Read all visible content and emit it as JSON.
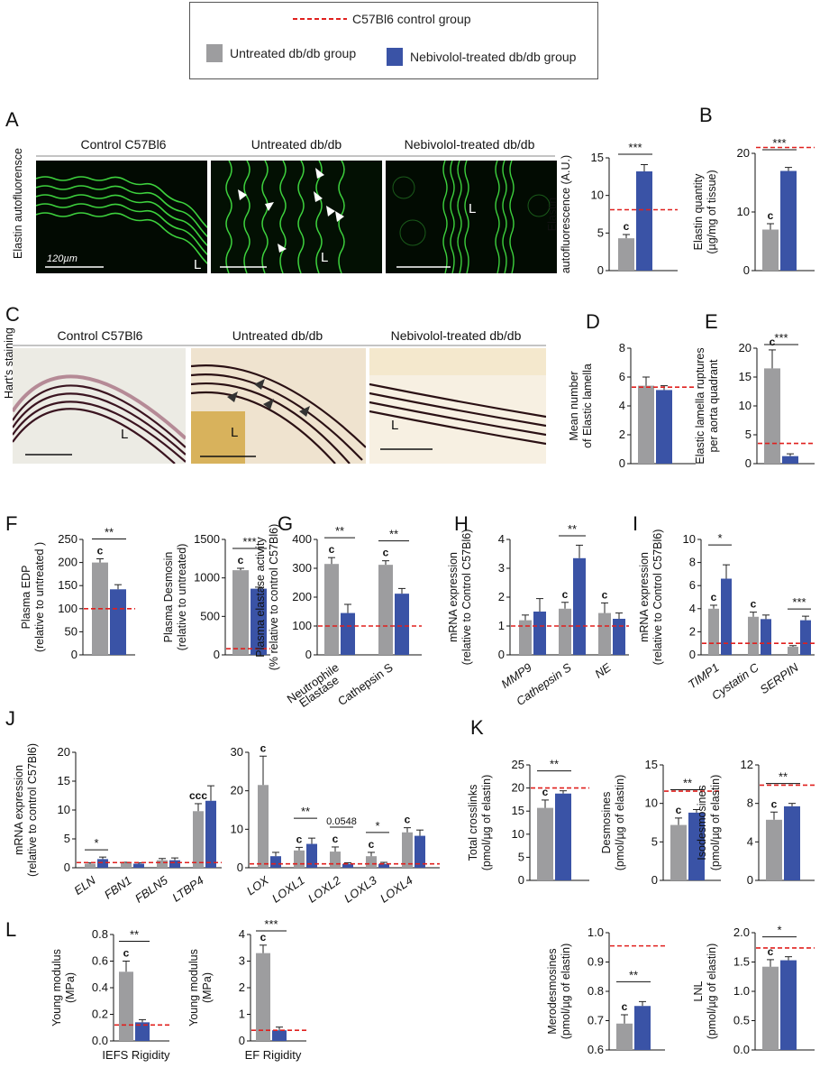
{
  "legend": {
    "control_label": "C57Bl6 control group",
    "untreated_label": "Untreated db/db group",
    "treated_label": "Nebivolol-treated db/db group"
  },
  "colors": {
    "untreated": "#9d9d9f",
    "treated": "#3a53a6",
    "control_line": "#e0201e"
  },
  "panels": {
    "A": {
      "letter": "A",
      "row_label": "Elastin autofluorensce",
      "titles": [
        "Control C57Bl6",
        "Untreated db/db",
        "Nebivolol-treated db/db"
      ],
      "lumen": "L",
      "scale": "120µm"
    },
    "B": {
      "letter": "B"
    },
    "C": {
      "letter": "C",
      "row_label": "Hart's staining",
      "titles": [
        "Control C57Bl6",
        "Untreated db/db",
        "Nebivolol-treated db/db"
      ],
      "lumen": "L"
    },
    "D": {
      "letter": "D"
    },
    "E": {
      "letter": "E"
    },
    "F": {
      "letter": "F"
    },
    "G": {
      "letter": "G"
    },
    "H": {
      "letter": "H"
    },
    "I": {
      "letter": "I"
    },
    "J": {
      "letter": "J"
    },
    "K": {
      "letter": "K"
    },
    "L": {
      "letter": "L"
    }
  },
  "chart_data": [
    {
      "id": "A",
      "type": "bar",
      "ylabel": [
        "Elastin",
        "autofluorescence (A.U.)"
      ],
      "ylim": [
        0,
        15
      ],
      "ticks": [
        0,
        5,
        10,
        15
      ],
      "categories": [
        ""
      ],
      "series": [
        {
          "values": [
            4.3
          ],
          "err": [
            0.5
          ]
        },
        {
          "values": [
            13.2
          ],
          "err": [
            0.9
          ]
        }
      ],
      "control": 8.1,
      "letters": [
        [
          "c"
        ]
      ],
      "sig": [
        {
          "text": "***",
          "cat": 0
        }
      ]
    },
    {
      "id": "B",
      "type": "bar",
      "ylabel": [
        "Elastin quantity",
        "(µg/mg of tissue)"
      ],
      "ylim": [
        0,
        20
      ],
      "ticks": [
        0,
        10,
        20
      ],
      "categories": [
        ""
      ],
      "series": [
        {
          "values": [
            7
          ],
          "err": [
            1
          ]
        },
        {
          "values": [
            17
          ],
          "err": [
            0.6
          ]
        }
      ],
      "control": 21,
      "letters": [
        [
          "c"
        ]
      ],
      "sig": [
        {
          "text": "***",
          "cat": 0
        }
      ]
    },
    {
      "id": "D",
      "type": "bar",
      "ylabel": [
        "Mean number",
        "of Elastic lamella"
      ],
      "ylim": [
        0,
        8
      ],
      "ticks": [
        0,
        2,
        4,
        6,
        8
      ],
      "categories": [
        ""
      ],
      "series": [
        {
          "values": [
            5.4
          ],
          "err": [
            0.6
          ]
        },
        {
          "values": [
            5.1
          ],
          "err": [
            0.3
          ]
        }
      ],
      "control": 5.3,
      "letters": [
        []
      ],
      "sig": []
    },
    {
      "id": "E",
      "type": "bar",
      "ylabel": [
        "Elastic lamella ruptures",
        "per aorta quadrant"
      ],
      "ylim": [
        0,
        20
      ],
      "ticks": [
        0,
        5,
        10,
        15,
        20
      ],
      "categories": [
        ""
      ],
      "series": [
        {
          "values": [
            16.5
          ],
          "err": [
            3.2
          ]
        },
        {
          "values": [
            1.3
          ],
          "err": [
            0.4
          ]
        }
      ],
      "control": 3.5,
      "letters": [
        [
          "c"
        ]
      ],
      "sig": [
        {
          "text": "***",
          "cat": 0
        }
      ]
    },
    {
      "id": "F1",
      "type": "bar",
      "ylabel": [
        "Plasma EDP",
        "(relative to untreated )"
      ],
      "ylim": [
        0,
        250
      ],
      "ticks": [
        0,
        50,
        100,
        150,
        200,
        250
      ],
      "categories": [
        ""
      ],
      "series": [
        {
          "values": [
            200
          ],
          "err": [
            8
          ]
        },
        {
          "values": [
            142
          ],
          "err": [
            10
          ]
        }
      ],
      "control": 100,
      "letters": [
        [
          "c"
        ]
      ],
      "sig": [
        {
          "text": "**",
          "cat": 0
        }
      ]
    },
    {
      "id": "F2",
      "type": "bar",
      "ylabel": [
        "Plasma Desmosin",
        "(relative to untreated)"
      ],
      "ylim": [
        0,
        1500
      ],
      "ticks": [
        0,
        500,
        1000,
        1500
      ],
      "categories": [
        ""
      ],
      "series": [
        {
          "values": [
            1100
          ],
          "err": [
            25
          ]
        },
        {
          "values": [
            860
          ],
          "err": [
            20
          ]
        }
      ],
      "control": 80,
      "letters": [
        [
          "c"
        ]
      ],
      "sig": [
        {
          "text": "***",
          "cat": 0
        }
      ]
    },
    {
      "id": "G",
      "type": "bar",
      "ylabel": [
        "Plasma elastase  activity",
        "(% relative to control C57Bl6)"
      ],
      "ylim": [
        0,
        400
      ],
      "ticks": [
        0,
        100,
        200,
        300,
        400
      ],
      "categories": [
        "Neutrophile\nElastase",
        "Cathepsin S"
      ],
      "series": [
        {
          "values": [
            315,
            312
          ],
          "err": [
            22,
            14
          ]
        },
        {
          "values": [
            145,
            212
          ],
          "err": [
            30,
            18
          ]
        }
      ],
      "control": 100,
      "letters": [
        [
          "c"
        ],
        [
          "c"
        ]
      ],
      "sig": [
        {
          "text": "**",
          "cat": 0
        },
        {
          "text": "**",
          "cat": 1
        }
      ]
    },
    {
      "id": "H",
      "type": "bar",
      "ylabel": [
        "mRNA expression",
        "(relative to Control C57Bl6)"
      ],
      "ylim": [
        0,
        4
      ],
      "ticks": [
        0,
        1,
        2,
        3,
        4
      ],
      "categories": [
        "MMP9",
        "Cathepsin S",
        "NE"
      ],
      "italic": [
        true,
        true,
        true
      ],
      "series": [
        {
          "values": [
            1.2,
            1.6,
            1.45
          ],
          "err": [
            0.18,
            0.22,
            0.35
          ]
        },
        {
          "values": [
            1.5,
            3.35,
            1.25
          ],
          "err": [
            0.45,
            0.45,
            0.2
          ]
        }
      ],
      "control": 1.0,
      "letters": [
        [],
        [
          "c"
        ],
        [
          "c"
        ]
      ],
      "sig": [
        {
          "text": "**",
          "cat": 1
        }
      ]
    },
    {
      "id": "I",
      "type": "bar",
      "ylabel": [
        "mRNA expression",
        "(relative to Control C57Bl6)"
      ],
      "ylim": [
        0,
        10
      ],
      "ticks": [
        0,
        2,
        4,
        6,
        8,
        10
      ],
      "categories": [
        "TIMP1",
        "Cystatin C",
        "SERPIN"
      ],
      "italic": [
        true,
        true,
        true
      ],
      "series": [
        {
          "values": [
            4.0,
            3.3,
            0.7
          ],
          "err": [
            0.3,
            0.4,
            0.1
          ]
        },
        {
          "values": [
            6.6,
            3.1,
            3.0
          ],
          "err": [
            1.2,
            0.35,
            0.35
          ]
        }
      ],
      "control": 1.0,
      "letters": [
        [
          "c"
        ],
        [
          "c"
        ],
        []
      ],
      "sig": [
        {
          "text": "*",
          "cat": 0
        },
        {
          "text": "***",
          "cat": 2
        }
      ]
    },
    {
      "id": "J1",
      "type": "bar",
      "ylabel": [
        "mRNA expression",
        "(relative to control C57Bl6)"
      ],
      "ylim": [
        0,
        20
      ],
      "ticks": [
        0,
        5,
        10,
        15,
        20
      ],
      "categories": [
        "ELN",
        "FBN1",
        "FBLN5",
        "LTBP4"
      ],
      "italic": [
        true,
        true,
        true,
        true
      ],
      "series": [
        {
          "values": [
            0.7,
            0.8,
            1.3,
            9.8
          ],
          "err": [
            0.15,
            0.15,
            0.3,
            1.3
          ]
        },
        {
          "values": [
            1.5,
            0.7,
            1.3,
            11.6
          ],
          "err": [
            0.35,
            0.15,
            0.4,
            2.6
          ]
        }
      ],
      "control": 0.9,
      "letters": [
        [],
        [],
        [],
        [
          "ccc"
        ]
      ],
      "sig": [
        {
          "text": "*",
          "cat": 0
        }
      ]
    },
    {
      "id": "J2",
      "type": "bar",
      "ylabel": [],
      "ylim": [
        0,
        30
      ],
      "ticks": [
        0,
        10,
        20,
        30
      ],
      "categories": [
        "LOX",
        "LOXL1",
        "LOXL2",
        "LOXL3",
        "LOXL4"
      ],
      "italic": [
        true,
        true,
        true,
        true,
        true
      ],
      "series": [
        {
          "values": [
            21.5,
            4.5,
            4.2,
            3.0,
            9.2
          ],
          "err": [
            7.5,
            0.8,
            1.2,
            1.0,
            1.2
          ]
        },
        {
          "values": [
            3.0,
            6.2,
            1.0,
            1.0,
            8.3
          ],
          "err": [
            1.0,
            1.5,
            0.3,
            0.4,
            1.5
          ]
        }
      ],
      "control": 1.0,
      "letters": [
        [
          "c"
        ],
        [
          "c"
        ],
        [
          "c"
        ],
        [
          "c"
        ],
        [
          "c"
        ]
      ],
      "sig": [
        {
          "text": "**",
          "cat": 1
        },
        {
          "text": "0.0548",
          "cat": 2
        },
        {
          "text": "*",
          "cat": 3
        }
      ]
    },
    {
      "id": "K1",
      "type": "bar",
      "ylabel": [
        "Total crosslinks",
        "(pmol/µg of elastin)"
      ],
      "ylim": [
        0,
        25
      ],
      "ticks": [
        0,
        5,
        10,
        15,
        20,
        25
      ],
      "categories": [
        ""
      ],
      "series": [
        {
          "values": [
            15.7
          ],
          "err": [
            1.7
          ]
        },
        {
          "values": [
            18.8
          ],
          "err": [
            0.6
          ]
        }
      ],
      "control": 20,
      "letters": [
        [
          "c"
        ]
      ],
      "sig": [
        {
          "text": "**",
          "cat": 0
        }
      ]
    },
    {
      "id": "K2",
      "type": "bar",
      "ylabel": [
        "Desmosines",
        "(pmol/µg of elastin)"
      ],
      "ylim": [
        0,
        15
      ],
      "ticks": [
        0,
        5,
        10,
        15
      ],
      "categories": [
        ""
      ],
      "series": [
        {
          "values": [
            7.2
          ],
          "err": [
            0.9
          ]
        },
        {
          "values": [
            8.8
          ],
          "err": [
            0.4
          ]
        }
      ],
      "control": 11.6,
      "letters": [
        [
          "c"
        ]
      ],
      "sig": [
        {
          "text": "**",
          "cat": 0
        }
      ]
    },
    {
      "id": "K3",
      "type": "bar",
      "ylabel": [
        "Isodesmosines",
        "(pmol/µg of elastin)"
      ],
      "ylim": [
        0,
        12
      ],
      "ticks": [
        0,
        4,
        8,
        12
      ],
      "categories": [
        ""
      ],
      "series": [
        {
          "values": [
            6.3
          ],
          "err": [
            0.8
          ]
        },
        {
          "values": [
            7.7
          ],
          "err": [
            0.3
          ]
        }
      ],
      "control": 9.9,
      "letters": [
        [
          "c"
        ]
      ],
      "sig": [
        {
          "text": "**",
          "cat": 0
        }
      ]
    },
    {
      "id": "K4",
      "type": "bar",
      "ylabel": [
        "Merodesmosines",
        "(pmol/µg of elastin)"
      ],
      "ylim": [
        0.6,
        1.0
      ],
      "ticks": [
        0.6,
        0.7,
        0.8,
        0.9,
        1.0
      ],
      "categories": [
        ""
      ],
      "series": [
        {
          "values": [
            0.69
          ],
          "err": [
            0.03
          ]
        },
        {
          "values": [
            0.75
          ],
          "err": [
            0.015
          ]
        }
      ],
      "control": 0.955,
      "letters": [
        [
          "c"
        ]
      ],
      "sig": [
        {
          "text": "**",
          "cat": 0
        }
      ]
    },
    {
      "id": "K5",
      "type": "bar",
      "ylabel": [
        "LNL",
        "(pmol/µg of elastin)"
      ],
      "ylim": [
        0,
        2.0
      ],
      "ticks": [
        0,
        0.5,
        1.0,
        1.5,
        2.0
      ],
      "categories": [
        ""
      ],
      "series": [
        {
          "values": [
            1.42
          ],
          "err": [
            0.12
          ]
        },
        {
          "values": [
            1.53
          ],
          "err": [
            0.06
          ]
        }
      ],
      "control": 1.74,
      "letters": [
        [
          "c"
        ]
      ],
      "sig": [
        {
          "text": "*",
          "cat": 0
        }
      ]
    },
    {
      "id": "L1",
      "type": "bar",
      "ylabel": [
        "Young modulus",
        "(MPa)"
      ],
      "ylim": [
        0,
        0.8
      ],
      "ticks": [
        0,
        0.2,
        0.4,
        0.6,
        0.8
      ],
      "xlabel": "IEFS Rigidity",
      "categories": [
        ""
      ],
      "series": [
        {
          "values": [
            0.52
          ],
          "err": [
            0.08
          ]
        },
        {
          "values": [
            0.14
          ],
          "err": [
            0.02
          ]
        }
      ],
      "control": 0.12,
      "letters": [
        [
          "c"
        ]
      ],
      "sig": [
        {
          "text": "**",
          "cat": 0
        }
      ]
    },
    {
      "id": "L2",
      "type": "bar",
      "ylabel": [
        "Young modulus",
        "(MPa)"
      ],
      "ylim": [
        0,
        4
      ],
      "ticks": [
        0,
        1,
        2,
        3,
        4
      ],
      "xlabel": "EF Rigidity",
      "categories": [
        ""
      ],
      "series": [
        {
          "values": [
            3.3
          ],
          "err": [
            0.3
          ]
        },
        {
          "values": [
            0.4
          ],
          "err": [
            0.12
          ]
        }
      ],
      "control": 0.4,
      "letters": [
        [
          "c"
        ]
      ],
      "sig": [
        {
          "text": "***",
          "cat": 0
        }
      ]
    }
  ]
}
